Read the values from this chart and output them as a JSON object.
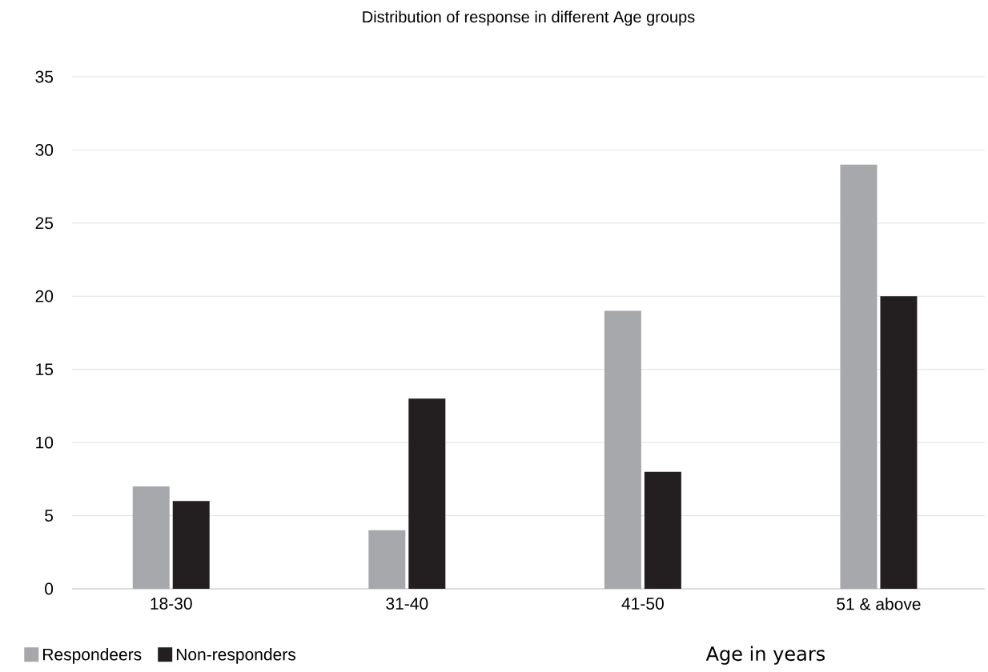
{
  "chart_data": {
    "type": "bar",
    "title": "Distribution of response in different Age groups",
    "xlabel": "Age in years",
    "categories": [
      "18-30",
      "31-40",
      "41-50",
      "51 & above"
    ],
    "series": [
      {
        "name": "Respondeers",
        "color": "#a7a8ab",
        "values": [
          7,
          4,
          19,
          29
        ]
      },
      {
        "name": "Non-responders",
        "color": "#231f20",
        "values": [
          6,
          13,
          8,
          20
        ]
      }
    ],
    "ylim": [
      0,
      35
    ],
    "yticks": [
      0,
      5,
      10,
      15,
      20,
      25,
      30,
      35
    ],
    "grid": "y",
    "legend": "bottom left"
  }
}
